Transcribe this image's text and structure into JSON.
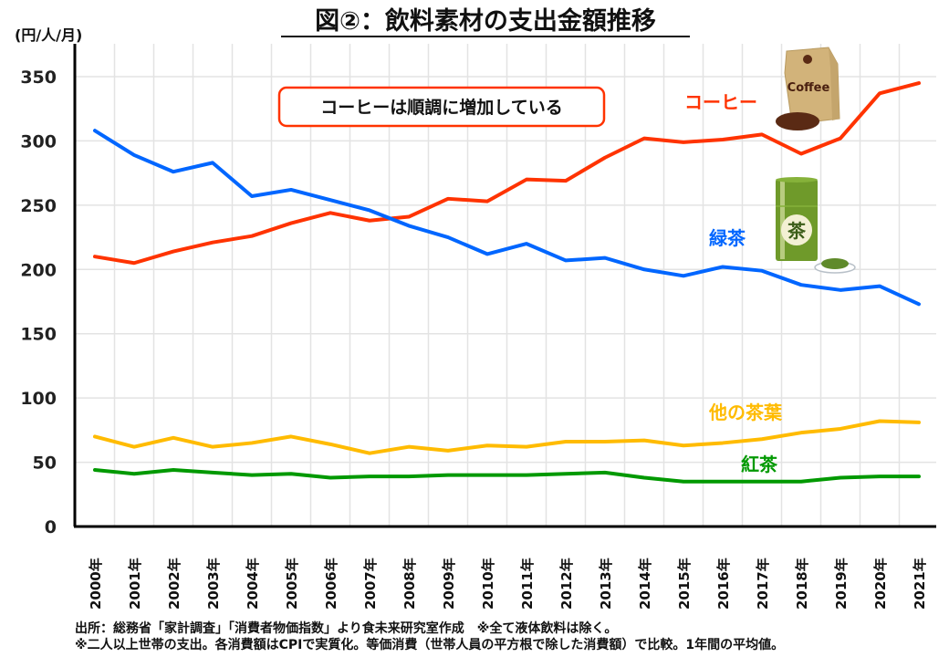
{
  "chart_data": {
    "type": "line",
    "title": "図②：飲料素材の支出金額推移",
    "ylabel": "(円/人/月)",
    "xlabel": "",
    "ylim": [
      0,
      370
    ],
    "yticks": [
      0,
      50,
      100,
      150,
      200,
      250,
      300,
      350
    ],
    "ytick_labels": [
      "0",
      "50",
      "100",
      "150",
      "200",
      "250",
      "300",
      "350"
    ],
    "grid": true,
    "legend": "inline labels near lines (no box)",
    "categories": [
      "2000年",
      "2001年",
      "2002年",
      "2003年",
      "2004年",
      "2005年",
      "2006年",
      "2007年",
      "2008年",
      "2009年",
      "2010年",
      "2011年",
      "2012年",
      "2013年",
      "2014年",
      "2015年",
      "2016年",
      "2017年",
      "2018年",
      "2019年",
      "2020年",
      "2021年"
    ],
    "series": [
      {
        "name": "コーヒー",
        "color": "#ff3300",
        "values": [
          210,
          205,
          214,
          221,
          226,
          236,
          244,
          238,
          241,
          255,
          253,
          270,
          269,
          287,
          302,
          299,
          301,
          305,
          290,
          302,
          337,
          345
        ]
      },
      {
        "name": "緑茶",
        "color": "#0066ff",
        "values": [
          308,
          289,
          276,
          283,
          257,
          262,
          254,
          246,
          234,
          225,
          212,
          220,
          207,
          209,
          200,
          195,
          202,
          199,
          188,
          184,
          187,
          173
        ]
      },
      {
        "name": "他の茶葉",
        "color": "#ffbb00",
        "values": [
          70,
          62,
          69,
          62,
          65,
          70,
          64,
          57,
          62,
          59,
          63,
          62,
          66,
          66,
          67,
          63,
          65,
          68,
          73,
          76,
          82,
          81
        ]
      },
      {
        "name": "紅茶",
        "color": "#009900",
        "values": [
          44,
          41,
          44,
          42,
          40,
          41,
          38,
          39,
          39,
          40,
          40,
          40,
          41,
          42,
          38,
          35,
          35,
          35,
          35,
          38,
          39,
          39
        ]
      }
    ],
    "annotations": [
      {
        "text": "コーヒーは順調に増加している",
        "style": "rounded box, red border"
      }
    ],
    "illustrations": [
      "coffee-bag-icon",
      "green-tea-can-icon"
    ]
  },
  "footnotes": [
    "出所：総務省「家計調査」「消費者物価指数」より食未来研究室作成　※全て液体飲料は除く。",
    "※二人以上世帯の支出。各消費額はCPIで実質化。等価消費（世帯人員の平方根で除した消費額）で比較。1年間の平均値。"
  ],
  "coffee_label_text": "Coffee",
  "tea_can_text": "茶"
}
